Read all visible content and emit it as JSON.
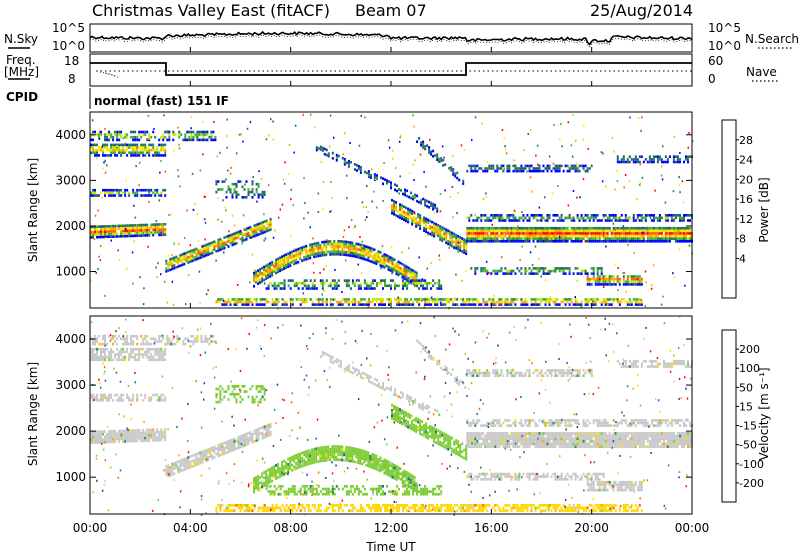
{
  "header": {
    "title": "Christmas Valley East (fitACF)",
    "beam": "Beam 07",
    "date": "25/Aug/2014"
  },
  "status_panels": {
    "nsky": {
      "label": "N.Sky",
      "scale_top": "10^5",
      "scale_bottom": "10^0"
    },
    "nsearch": {
      "label": "N.Search",
      "scale_top": "10^5",
      "scale_bottom": "10^0"
    },
    "freq": {
      "label_line1": "Freq.",
      "label_line2": "[MHz]",
      "ticks_left": [
        "18",
        "8"
      ]
    },
    "nave": {
      "label": "Nave",
      "ticks_right": [
        "60",
        "0"
      ]
    },
    "cpid": {
      "label": "CPID",
      "value": "normal (fast) 151 IF"
    }
  },
  "chart_data": [
    {
      "type": "heatmap",
      "panel": "power",
      "ylabel": "Slant Range [km]",
      "xlabel": "",
      "yticks": [
        "1000",
        "2000",
        "3000",
        "4000"
      ],
      "ylim": [
        200,
        4500
      ],
      "xlim": [
        0,
        24
      ],
      "colorbar": {
        "label": "Power [dB]",
        "ticks": [
          "28",
          "24",
          "20",
          "16",
          "12",
          "8",
          "4"
        ],
        "colors": [
          "#ff0000",
          "#ff5a00",
          "#ffa500",
          "#ffe600",
          "#c8e600",
          "#3cb43c",
          "#287850",
          "#1e5a82",
          "#0000ff"
        ]
      }
    },
    {
      "type": "heatmap",
      "panel": "velocity",
      "ylabel": "Slant Range [km]",
      "xlabel": "Time UT",
      "xticks": [
        "00:00",
        "04:00",
        "08:00",
        "12:00",
        "16:00",
        "20:00",
        "00:00"
      ],
      "yticks": [
        "1000",
        "2000",
        "3000",
        "4000"
      ],
      "ylim": [
        200,
        4500
      ],
      "xlim": [
        0,
        24
      ],
      "colorbar": {
        "label": "Velocity [m s⁻¹]",
        "ticks": [
          "200",
          "100",
          "50",
          "15",
          "-15",
          "-50",
          "-100",
          "-200"
        ],
        "colors": [
          "#1e3c9a",
          "#1e64a0",
          "#2e8b57",
          "#7ccd32",
          "#c8c8c8",
          "#ffd700",
          "#ffa500",
          "#ff6400",
          "#ff0000"
        ]
      }
    }
  ]
}
